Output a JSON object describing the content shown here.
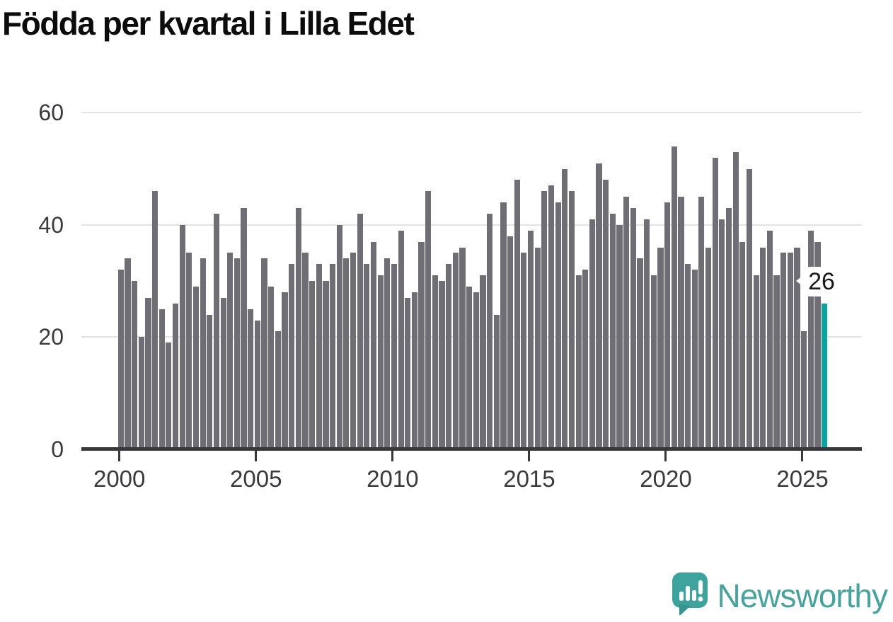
{
  "title": "Födda per kvartal i Lilla Edet",
  "annotation": {
    "value_label": "26"
  },
  "logo": {
    "text": "Newsworthy"
  },
  "colors": {
    "bar": "#6e6e74",
    "highlight": "#0ba3a0",
    "grid": "#e3e3e3",
    "axis": "#37373c",
    "tick_text": "#3a3a3e",
    "title_text": "#0c0c0c",
    "callout_bg": "#ffffff",
    "callout_text": "#191919",
    "logo_teal": "#3ea29d",
    "logo_text_teal": "#48a29d"
  },
  "chart_data": {
    "type": "bar",
    "title": "Födda per kvartal i Lilla Edet",
    "frequency": "quarterly",
    "start_period": "2000 Q1",
    "end_period": "2025 Q4",
    "xlabel": "",
    "ylabel": "",
    "ylim": [
      0,
      63
    ],
    "y_ticks": [
      0,
      20,
      40,
      60
    ],
    "grid": "horizontal",
    "legend_position": "none",
    "x_ticks": [
      {
        "label": "2000",
        "quarter_index": 0
      },
      {
        "label": "2005",
        "quarter_index": 20
      },
      {
        "label": "2010",
        "quarter_index": 40
      },
      {
        "label": "2015",
        "quarter_index": 60
      },
      {
        "label": "2020",
        "quarter_index": 80
      },
      {
        "label": "2025",
        "quarter_index": 100
      }
    ],
    "series": [
      {
        "name": "Födda per kvartal",
        "values": [
          32,
          34,
          30,
          20,
          27,
          46,
          25,
          19,
          26,
          40,
          35,
          29,
          34,
          24,
          42,
          27,
          35,
          34,
          43,
          25,
          23,
          34,
          29,
          21,
          28,
          33,
          43,
          35,
          30,
          33,
          30,
          33,
          40,
          34,
          35,
          42,
          33,
          37,
          31,
          34,
          33,
          39,
          27,
          28,
          37,
          46,
          31,
          30,
          33,
          35,
          36,
          29,
          28,
          31,
          42,
          24,
          44,
          38,
          48,
          35,
          39,
          36,
          46,
          47,
          44,
          50,
          46,
          31,
          32,
          41,
          51,
          48,
          42,
          40,
          45,
          43,
          34,
          41,
          31,
          36,
          44,
          54,
          45,
          33,
          32,
          45,
          36,
          52,
          41,
          43,
          53,
          37,
          50,
          31,
          36,
          39,
          31,
          35,
          35,
          36,
          21,
          39,
          37,
          26
        ]
      }
    ],
    "highlighted_last_value": 26
  }
}
